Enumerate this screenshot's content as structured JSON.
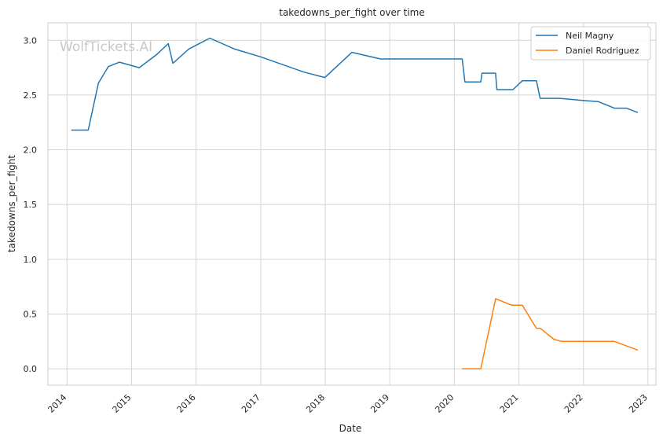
{
  "chart_data": {
    "type": "line",
    "title": "takedowns_per_fight over time",
    "xlabel": "Date",
    "ylabel": "takedowns_per_fight",
    "watermark": "WolfTickets.AI",
    "grid": true,
    "legend_position": "top-right",
    "xlim": [
      "2013-09-15",
      "2023-02-15"
    ],
    "ylim": [
      -0.15,
      3.16
    ],
    "x_ticks": [
      "2014",
      "2015",
      "2016",
      "2017",
      "2018",
      "2019",
      "2020",
      "2021",
      "2022",
      "2023"
    ],
    "y_ticks": [
      "0.0",
      "0.5",
      "1.0",
      "1.5",
      "2.0",
      "2.5",
      "3.0"
    ],
    "series": [
      {
        "name": "Neil Magny",
        "color": "#1f77b4",
        "points": [
          [
            "2014-01-25",
            2.18
          ],
          [
            "2014-05-01",
            2.18
          ],
          [
            "2014-06-28",
            2.61
          ],
          [
            "2014-08-23",
            2.76
          ],
          [
            "2014-10-25",
            2.8
          ],
          [
            "2015-02-14",
            2.75
          ],
          [
            "2015-05-23",
            2.87
          ],
          [
            "2015-07-28",
            2.97
          ],
          [
            "2015-08-23",
            2.79
          ],
          [
            "2015-11-21",
            2.92
          ],
          [
            "2016-03-19",
            3.02
          ],
          [
            "2016-08-06",
            2.92
          ],
          [
            "2016-12-30",
            2.85
          ],
          [
            "2017-09-02",
            2.71
          ],
          [
            "2017-12-30",
            2.66
          ],
          [
            "2018-06-01",
            2.89
          ],
          [
            "2018-11-10",
            2.83
          ],
          [
            "2019-12-01",
            2.83
          ],
          [
            "2020-02-15",
            2.83
          ],
          [
            "2020-03-01",
            2.62
          ],
          [
            "2020-05-30",
            2.62
          ],
          [
            "2020-06-06",
            2.7
          ],
          [
            "2020-08-22",
            2.7
          ],
          [
            "2020-08-29",
            2.55
          ],
          [
            "2020-11-28",
            2.55
          ],
          [
            "2021-01-20",
            2.63
          ],
          [
            "2021-04-10",
            2.63
          ],
          [
            "2021-05-01",
            2.47
          ],
          [
            "2021-08-21",
            2.47
          ],
          [
            "2022-01-01",
            2.45
          ],
          [
            "2022-03-26",
            2.44
          ],
          [
            "2022-06-25",
            2.38
          ],
          [
            "2022-09-01",
            2.38
          ],
          [
            "2022-11-05",
            2.34
          ]
        ]
      },
      {
        "name": "Daniel Rodriguez",
        "color": "#ff7f0e",
        "points": [
          [
            "2020-02-15",
            0.0
          ],
          [
            "2020-05-30",
            0.0
          ],
          [
            "2020-08-22",
            0.64
          ],
          [
            "2020-11-21",
            0.58
          ],
          [
            "2021-01-20",
            0.58
          ],
          [
            "2021-04-10",
            0.37
          ],
          [
            "2021-05-01",
            0.37
          ],
          [
            "2021-07-17",
            0.27
          ],
          [
            "2021-08-28",
            0.25
          ],
          [
            "2022-06-25",
            0.25
          ],
          [
            "2022-11-05",
            0.17
          ]
        ]
      }
    ]
  }
}
